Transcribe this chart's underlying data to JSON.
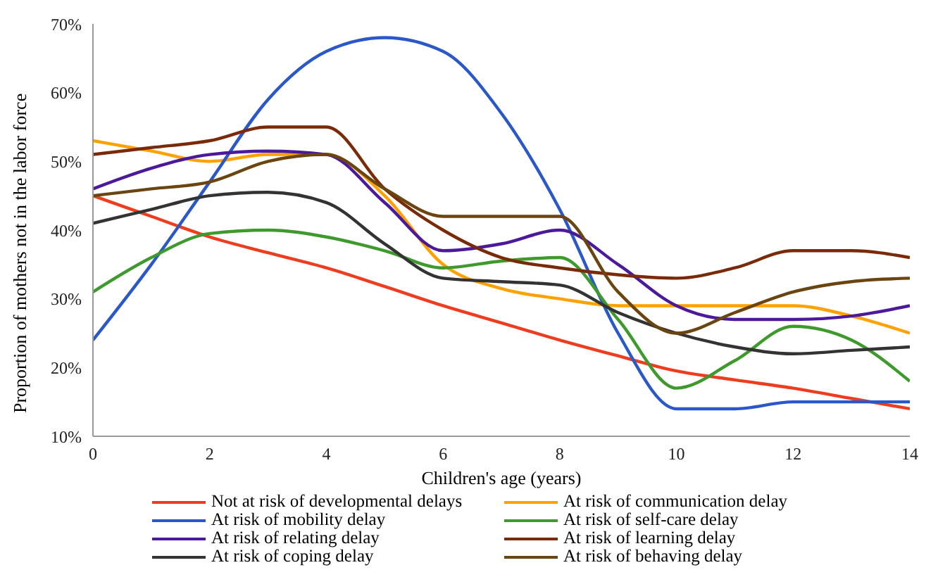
{
  "chart_data": {
    "type": "line",
    "xlabel": "Children's age (years)",
    "ylabel": "Proportion of mothers not in the labor force",
    "x": [
      0,
      1,
      2,
      3,
      4,
      5,
      6,
      7,
      8,
      9,
      10,
      11,
      12,
      13,
      14
    ],
    "xlim": [
      0,
      14
    ],
    "xticks": [
      0,
      2,
      4,
      6,
      8,
      10,
      12,
      14
    ],
    "ylim": [
      10,
      70
    ],
    "yticks": [
      {
        "value": 10,
        "label": "10%"
      },
      {
        "value": 20,
        "label": "20%"
      },
      {
        "value": 30,
        "label": "30%"
      },
      {
        "value": 40,
        "label": "40%"
      },
      {
        "value": 50,
        "label": "50%"
      },
      {
        "value": 60,
        "label": "60%"
      },
      {
        "value": 70,
        "label": "70%"
      }
    ],
    "grid": false,
    "legend": "bottom",
    "marker": "none",
    "line_style": "solid",
    "series": [
      {
        "name": "Not at risk of developmental delays",
        "color": "#f03c1e",
        "values": [
          45,
          42,
          39,
          36.7,
          34.5,
          31.8,
          29,
          26.5,
          24,
          21.7,
          19.5,
          18.2,
          17,
          15.5,
          14
        ]
      },
      {
        "name": "At risk of communication delay",
        "color": "#ffa200",
        "values": [
          53,
          51.5,
          50,
          51,
          51,
          45,
          35,
          31.5,
          30,
          29,
          29,
          29,
          29,
          27.5,
          25
        ]
      },
      {
        "name": "At risk of mobility delay",
        "color": "#2a58c8",
        "values": [
          24,
          35,
          47,
          59,
          66,
          68,
          66,
          57,
          43,
          25,
          14,
          14,
          15,
          15,
          15
        ]
      },
      {
        "name": "At risk of self-care delay",
        "color": "#3e9a2c",
        "values": [
          31,
          36,
          39.5,
          40,
          39,
          37,
          34.5,
          35.5,
          36,
          27,
          17,
          21,
          26,
          24,
          18
        ]
      },
      {
        "name": "At risk of relating delay",
        "color": "#4b1a9a",
        "values": [
          46,
          49,
          51,
          51.5,
          51,
          44,
          37,
          38,
          40,
          35,
          29,
          27,
          27,
          27.5,
          29
        ]
      },
      {
        "name": "At risk of learning delay",
        "color": "#7a2a08",
        "values": [
          51,
          52,
          53,
          55,
          55,
          46,
          40,
          36,
          34.5,
          33.5,
          33,
          34.5,
          37,
          37,
          36
        ]
      },
      {
        "name": "At risk of coping delay",
        "color": "#333333",
        "values": [
          41,
          43,
          45,
          45.5,
          44,
          38,
          33,
          32.5,
          32,
          28,
          25,
          23,
          22,
          22.5,
          23
        ]
      },
      {
        "name": "At risk of behaving delay",
        "color": "#6b4510",
        "values": [
          45,
          46,
          47,
          50,
          51,
          46,
          42,
          42,
          42,
          31,
          25,
          28,
          31,
          32.5,
          33
        ]
      }
    ]
  }
}
